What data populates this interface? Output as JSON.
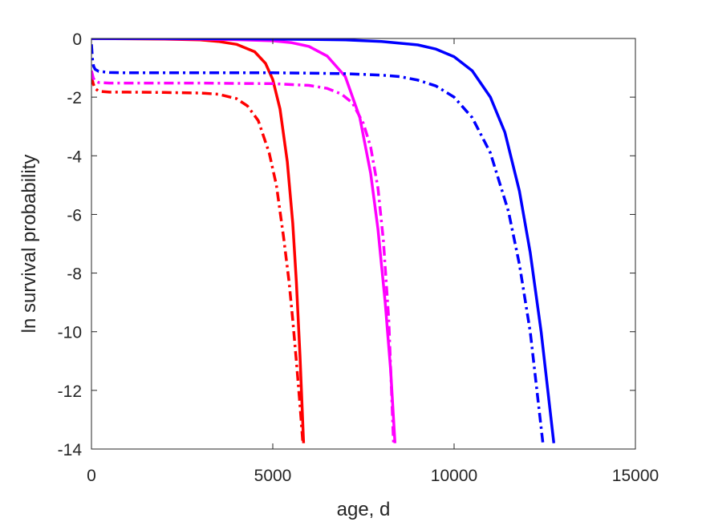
{
  "chart_data": {
    "type": "line",
    "xlabel": "age, d",
    "ylabel": "ln survival probability",
    "xlim": [
      0,
      15000
    ],
    "ylim": [
      -14,
      0
    ],
    "xticks": [
      0,
      5000,
      10000,
      15000
    ],
    "xtick_labels": [
      "0",
      "5000",
      "10000",
      "15000"
    ],
    "yticks": [
      0,
      -2,
      -4,
      -6,
      -8,
      -10,
      -12,
      -14
    ],
    "ytick_labels": [
      "0",
      "-2",
      "-4",
      "-6",
      "-8",
      "-10",
      "-12",
      "-14"
    ],
    "grid": false,
    "legend": "none",
    "series": [
      {
        "color": "#ff0000",
        "style": "solid",
        "x": [
          0,
          1000,
          2000,
          3000,
          3500,
          4000,
          4500,
          4800,
          5000,
          5200,
          5400,
          5550,
          5650,
          5750,
          5850
        ],
        "y": [
          0,
          -0.01,
          -0.02,
          -0.05,
          -0.1,
          -0.2,
          -0.45,
          -0.85,
          -1.4,
          -2.4,
          -4.2,
          -6.3,
          -8.3,
          -10.8,
          -13.8
        ]
      },
      {
        "color": "#ff0000",
        "style": "dashdot",
        "x": [
          0,
          50,
          100,
          200,
          500,
          1000,
          2000,
          3000,
          3500,
          4000,
          4300,
          4600,
          4900,
          5100,
          5300,
          5450,
          5550,
          5650,
          5750,
          5830
        ],
        "y": [
          -1.3,
          -1.55,
          -1.7,
          -1.8,
          -1.83,
          -1.83,
          -1.84,
          -1.86,
          -1.9,
          -2.05,
          -2.3,
          -2.8,
          -3.9,
          -5.0,
          -6.8,
          -8.3,
          -9.6,
          -11.0,
          -12.5,
          -13.8
        ]
      },
      {
        "color": "#ff00ff",
        "style": "solid",
        "x": [
          0,
          1000,
          2000,
          3000,
          4000,
          5000,
          5500,
          6000,
          6500,
          7000,
          7400,
          7700,
          7900,
          8100,
          8250,
          8370
        ],
        "y": [
          0,
          0,
          -0.01,
          -0.02,
          -0.04,
          -0.08,
          -0.14,
          -0.27,
          -0.6,
          -1.3,
          -2.7,
          -4.6,
          -6.5,
          -9.0,
          -11.3,
          -13.8
        ]
      },
      {
        "color": "#ff00ff",
        "style": "dashdot",
        "x": [
          0,
          50,
          100,
          200,
          500,
          1000,
          2000,
          3000,
          4000,
          5000,
          6000,
          6500,
          6900,
          7200,
          7500,
          7700,
          7900,
          8050,
          8200,
          8330
        ],
        "y": [
          -1.1,
          -1.35,
          -1.45,
          -1.5,
          -1.52,
          -1.52,
          -1.52,
          -1.52,
          -1.53,
          -1.54,
          -1.6,
          -1.7,
          -1.9,
          -2.2,
          -2.9,
          -3.7,
          -5.1,
          -6.9,
          -9.6,
          -13.8
        ]
      },
      {
        "color": "#0000ff",
        "style": "solid",
        "x": [
          0,
          2000,
          4000,
          6000,
          7000,
          8000,
          9000,
          9500,
          10000,
          10500,
          11000,
          11400,
          11800,
          12100,
          12400,
          12750
        ],
        "y": [
          0,
          0,
          -0.01,
          -0.03,
          -0.05,
          -0.1,
          -0.22,
          -0.36,
          -0.62,
          -1.1,
          -2.0,
          -3.2,
          -5.2,
          -7.3,
          -10.0,
          -13.8
        ]
      },
      {
        "color": "#0000ff",
        "style": "dashdot",
        "x": [
          0,
          30,
          60,
          100,
          200,
          500,
          1000,
          3000,
          5000,
          6000,
          7000,
          8000,
          8500,
          9000,
          9500,
          10000,
          10500,
          11000,
          11500,
          11800,
          12100,
          12450
        ],
        "y": [
          -0.2,
          -0.75,
          -0.95,
          -1.05,
          -1.12,
          -1.16,
          -1.17,
          -1.17,
          -1.17,
          -1.18,
          -1.2,
          -1.25,
          -1.3,
          -1.42,
          -1.62,
          -2.0,
          -2.7,
          -3.9,
          -5.9,
          -7.7,
          -10.0,
          -13.8
        ]
      }
    ]
  }
}
